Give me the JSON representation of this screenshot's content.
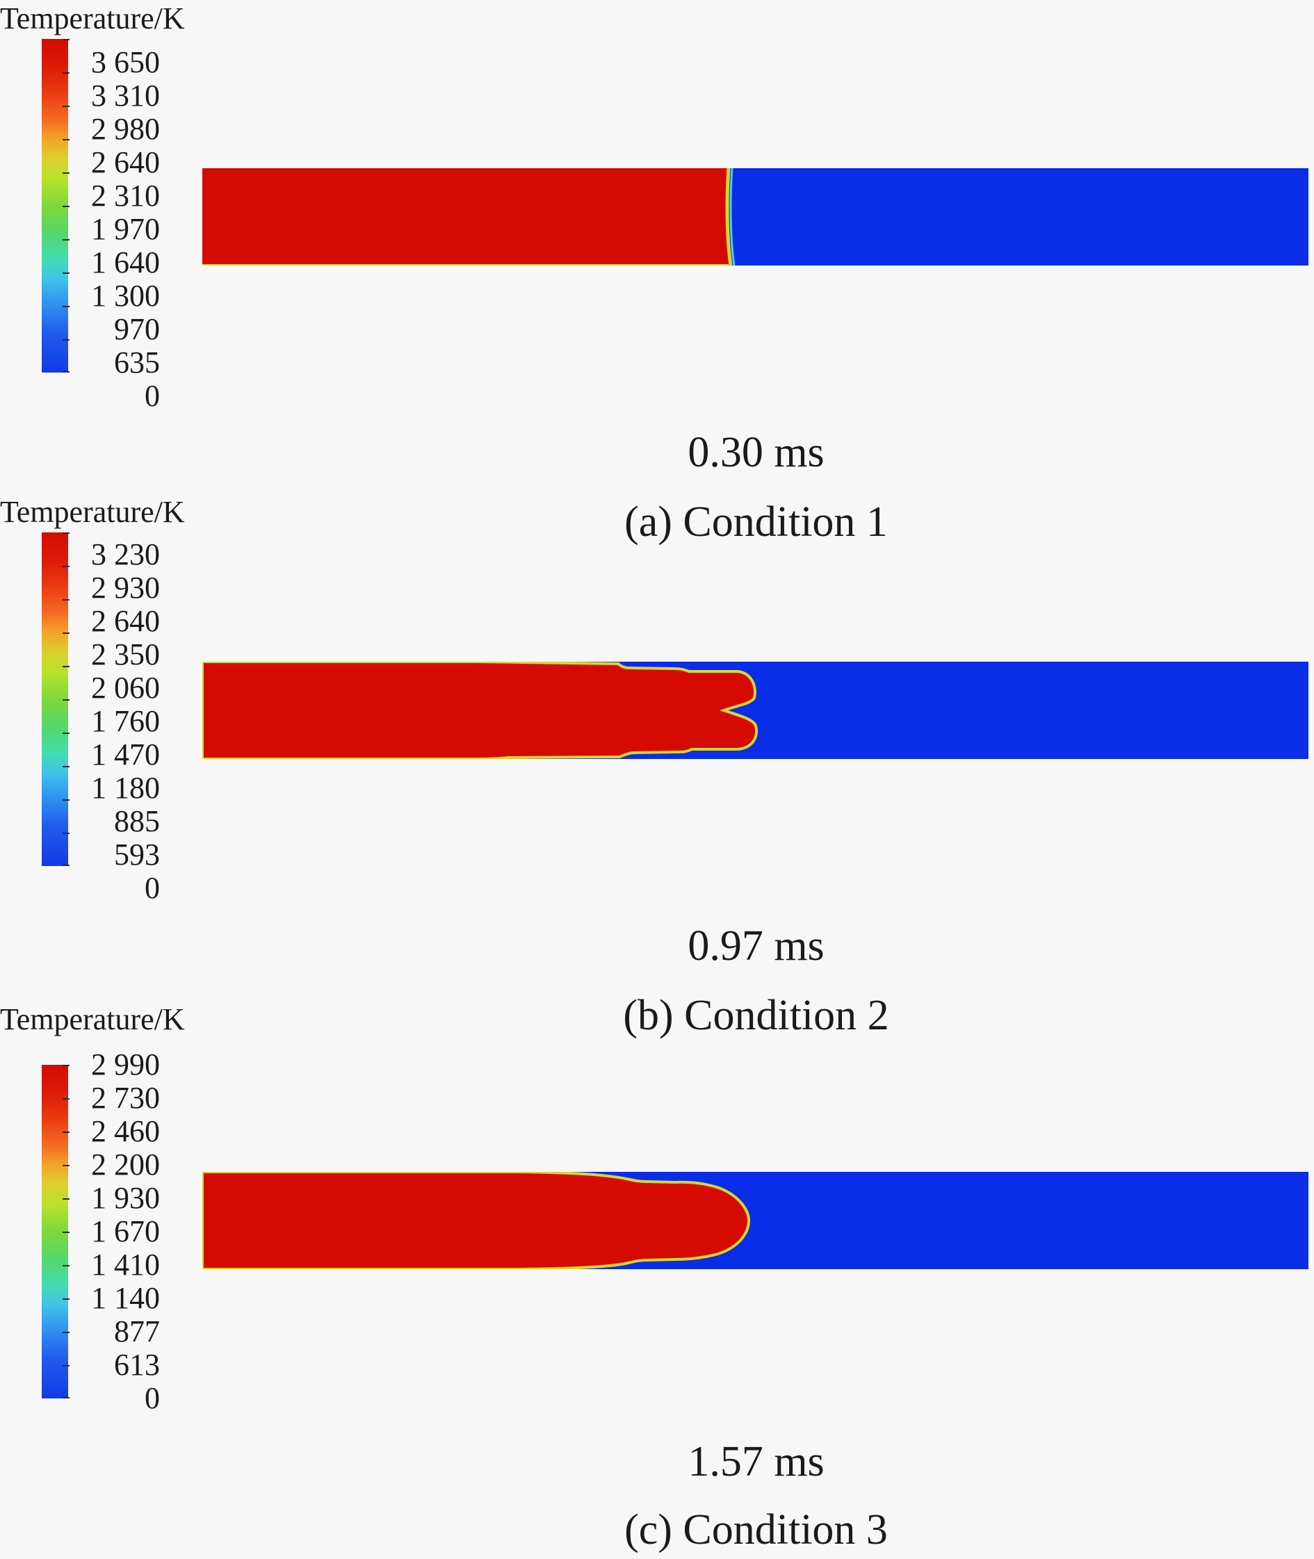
{
  "colors": {
    "burned": "#d50b02",
    "unburned": "#0a2de8",
    "flame_front": "#d7d732"
  },
  "panels": [
    {
      "legend_title": "Temperature/K",
      "ticks": [
        "3 650",
        "3 310",
        "2 980",
        "2 640",
        "2 310",
        "1 970",
        "1 640",
        "1 300",
        "970",
        "635",
        "0"
      ],
      "time": "0.30 ms",
      "caption": "(a) Condition 1"
    },
    {
      "legend_title": "Temperature/K",
      "ticks": [
        "3 230",
        "2 930",
        "2 640",
        "2 350",
        "2 060",
        "1 760",
        "1 470",
        "1 180",
        "885",
        "593",
        "0"
      ],
      "time": "0.97 ms",
      "caption": "(b) Condition 2"
    },
    {
      "legend_title": "Temperature/K",
      "ticks": [
        "2 990",
        "2 730",
        "2 460",
        "2 200",
        "1 930",
        "1 670",
        "1 410",
        "1 140",
        "877",
        "613",
        "0"
      ],
      "time": "1.57 ms",
      "caption": "(c) Condition 3"
    }
  ]
}
